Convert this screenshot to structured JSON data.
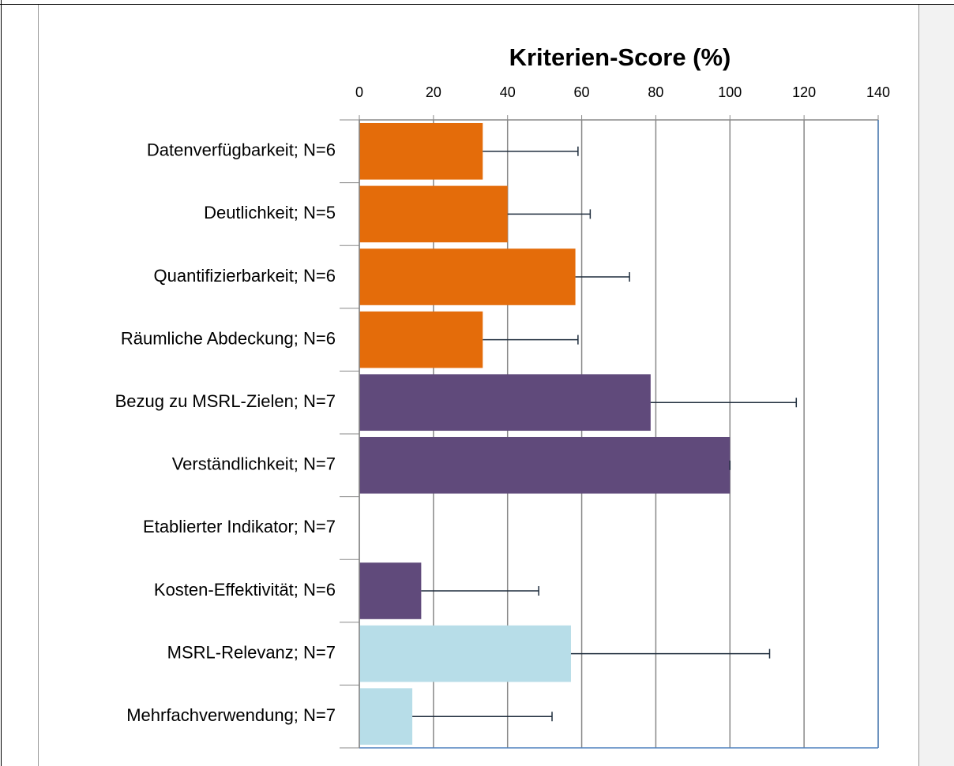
{
  "chart_data": {
    "type": "bar",
    "orientation": "horizontal",
    "title": "Kriterien-Score (%)",
    "categories": [
      "Datenverfügbarkeit; N=6",
      "Deutlichkeit; N=5",
      "Quantifizierbarkeit; N=6",
      "Räumliche Abdeckung; N=6",
      "Bezug zu MSRL-Zielen; N=7",
      "Verständlichkeit; N=7",
      "Etablierter Indikator; N=7",
      "Kosten-Effektivität; N=6",
      "MSRL-Relevanz; N=7",
      "Mehrfachverwendung; N=7"
    ],
    "values": [
      33.3,
      40,
      58.3,
      33.3,
      78.6,
      100,
      0,
      16.7,
      57.1,
      14.3
    ],
    "errors": [
      25.7,
      22.3,
      14.6,
      25.7,
      39.3,
      0,
      0,
      31.7,
      53.6,
      37.7
    ],
    "colors": [
      "#e46c0a",
      "#e46c0a",
      "#e46c0a",
      "#e46c0a",
      "#604a7b",
      "#604a7b",
      "#604a7b",
      "#604a7b",
      "#b7dde8",
      "#b7dde8"
    ],
    "error_color": "#1f2d3d",
    "xlim": [
      0,
      140
    ],
    "xticks": [
      0,
      20,
      40,
      60,
      80,
      100,
      120,
      140
    ],
    "grid": true
  }
}
